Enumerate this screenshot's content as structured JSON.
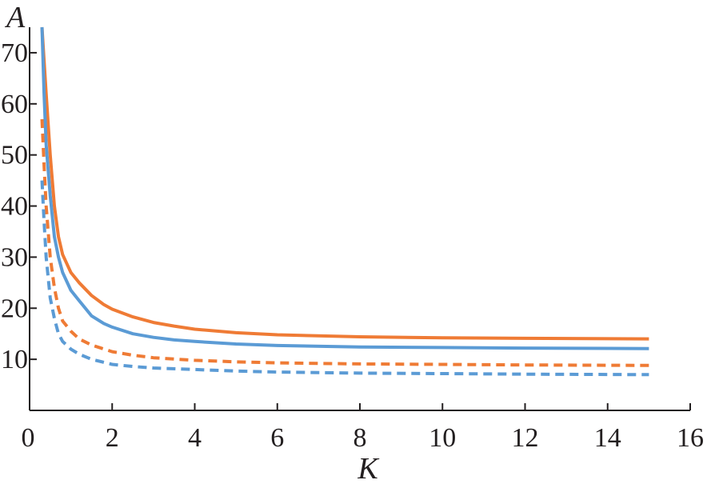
{
  "chart_data": {
    "type": "line",
    "xlabel": "K",
    "ylabel": "A",
    "xlim": [
      0,
      16
    ],
    "ylim": [
      0,
      75
    ],
    "x_ticks": [
      "0",
      "2",
      "4",
      "6",
      "8",
      "10",
      "12",
      "14",
      "16"
    ],
    "y_ticks": [
      "10",
      "20",
      "30",
      "40",
      "50",
      "60",
      "70"
    ],
    "grid": false,
    "series": [
      {
        "color": "#ef7b35",
        "dash": "solid",
        "points": [
          [
            0.3,
            75
          ],
          [
            0.4,
            62
          ],
          [
            0.5,
            50
          ],
          [
            0.6,
            40
          ],
          [
            0.7,
            34
          ],
          [
            0.8,
            30.5
          ],
          [
            1.0,
            27
          ],
          [
            1.2,
            25
          ],
          [
            1.5,
            22.5
          ],
          [
            1.8,
            20.7
          ],
          [
            2.0,
            19.8
          ],
          [
            2.5,
            18.3
          ],
          [
            3.0,
            17.2
          ],
          [
            3.5,
            16.5
          ],
          [
            4.0,
            15.9
          ],
          [
            5.0,
            15.2
          ],
          [
            6.0,
            14.8
          ],
          [
            8.0,
            14.4
          ],
          [
            10.0,
            14.2
          ],
          [
            12.0,
            14.1
          ],
          [
            15.0,
            14.0
          ]
        ]
      },
      {
        "color": "#5b9bd5",
        "dash": "solid",
        "points": [
          [
            0.3,
            75
          ],
          [
            0.35,
            62
          ],
          [
            0.4,
            52
          ],
          [
            0.5,
            42
          ],
          [
            0.6,
            34
          ],
          [
            0.7,
            30
          ],
          [
            0.8,
            27
          ],
          [
            1.0,
            23.5
          ],
          [
            1.2,
            21.5
          ],
          [
            1.5,
            18.5
          ],
          [
            1.8,
            17.0
          ],
          [
            2.0,
            16.3
          ],
          [
            2.5,
            15.0
          ],
          [
            3.0,
            14.3
          ],
          [
            3.5,
            13.8
          ],
          [
            4.0,
            13.5
          ],
          [
            5.0,
            13.0
          ],
          [
            6.0,
            12.7
          ],
          [
            8.0,
            12.4
          ],
          [
            10.0,
            12.3
          ],
          [
            12.0,
            12.2
          ],
          [
            15.0,
            12.1
          ]
        ]
      },
      {
        "color": "#ef7b35",
        "dash": "dashed",
        "points": [
          [
            0.3,
            57
          ],
          [
            0.35,
            48
          ],
          [
            0.4,
            40
          ],
          [
            0.5,
            30
          ],
          [
            0.6,
            24
          ],
          [
            0.7,
            20
          ],
          [
            0.8,
            17.5
          ],
          [
            1.0,
            15.5
          ],
          [
            1.2,
            14.0
          ],
          [
            1.5,
            12.8
          ],
          [
            2.0,
            11.5
          ],
          [
            2.5,
            10.8
          ],
          [
            3.0,
            10.3
          ],
          [
            4.0,
            9.8
          ],
          [
            5.0,
            9.5
          ],
          [
            6.0,
            9.3
          ],
          [
            8.0,
            9.1
          ],
          [
            10.0,
            9.0
          ],
          [
            12.0,
            8.9
          ],
          [
            15.0,
            8.8
          ]
        ]
      },
      {
        "color": "#5b9bd5",
        "dash": "dashed",
        "points": [
          [
            0.3,
            45
          ],
          [
            0.35,
            37
          ],
          [
            0.4,
            30
          ],
          [
            0.5,
            22
          ],
          [
            0.6,
            18
          ],
          [
            0.7,
            15
          ],
          [
            0.8,
            13.5
          ],
          [
            1.0,
            12.0
          ],
          [
            1.2,
            11.0
          ],
          [
            1.5,
            10.0
          ],
          [
            2.0,
            9.0
          ],
          [
            2.5,
            8.6
          ],
          [
            3.0,
            8.3
          ],
          [
            4.0,
            8.0
          ],
          [
            5.0,
            7.7
          ],
          [
            6.0,
            7.5
          ],
          [
            8.0,
            7.3
          ],
          [
            10.0,
            7.2
          ],
          [
            12.0,
            7.1
          ],
          [
            15.0,
            7.0
          ]
        ]
      }
    ]
  }
}
